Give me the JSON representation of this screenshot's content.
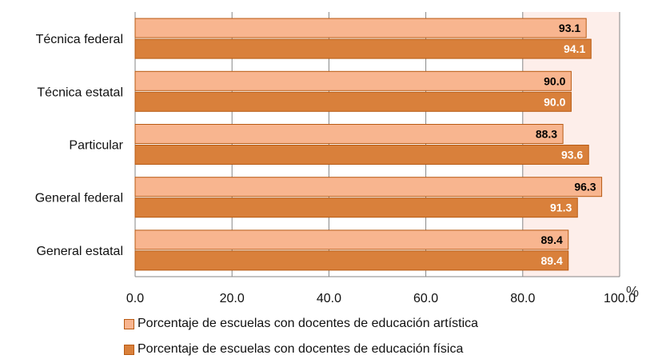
{
  "chart_data": {
    "type": "bar",
    "orientation": "horizontal",
    "categories": [
      "Técnica federal",
      "Técnica estatal",
      "Particular",
      "General federal",
      "General estatal"
    ],
    "series": [
      {
        "name": "Porcentaje de escuelas con docentes de educación artística",
        "values": [
          93.1,
          90.0,
          88.3,
          96.3,
          89.4
        ],
        "labels": [
          "93.1",
          "90.0",
          "88.3",
          "96.3",
          "89.4"
        ],
        "color": "#f8b58f",
        "label_color": "#000000"
      },
      {
        "name": "Porcentaje de escuelas con docentes de educación física",
        "values": [
          94.1,
          90.0,
          93.6,
          91.3,
          89.4
        ],
        "labels": [
          "94.1",
          "90.0",
          "93.6",
          "91.3",
          "89.4"
        ],
        "color": "#d9803b",
        "label_color": "#ffffff"
      }
    ],
    "x_ticks": [
      "0.0",
      "20.0",
      "40.0",
      "60.0",
      "80.0",
      "100.0"
    ],
    "xlim": [
      0,
      100
    ],
    "unit": "%",
    "grid": true,
    "highlight_band": [
      80,
      100
    ],
    "band_color": "#fdeeea",
    "legend_position": "bottom"
  }
}
